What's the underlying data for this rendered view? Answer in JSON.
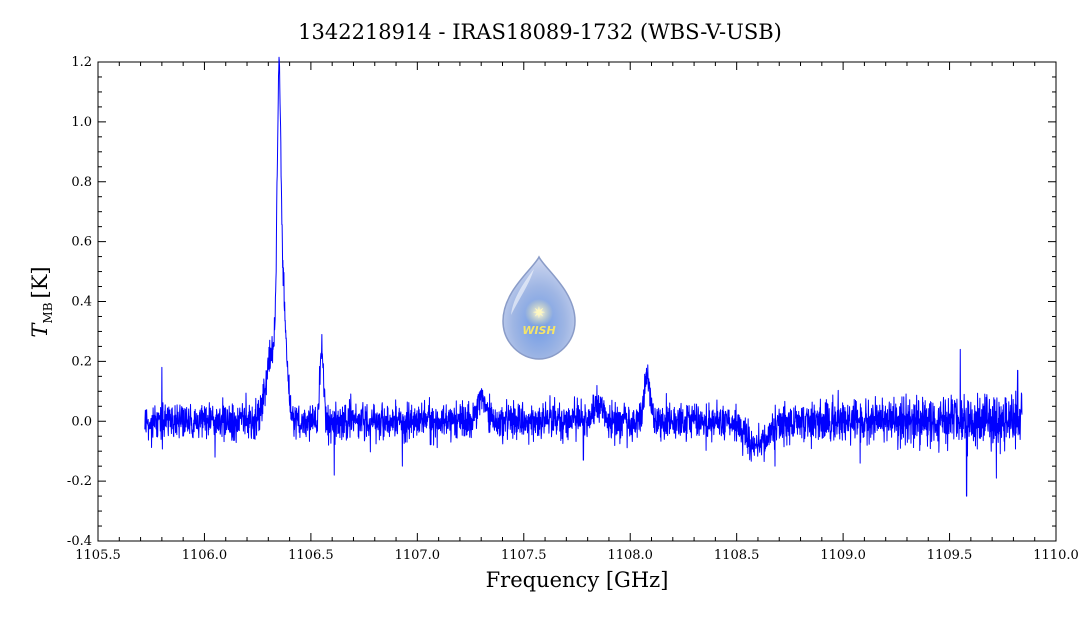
{
  "chart_data": {
    "type": "line",
    "title": "1342218914 - IRAS18089-1732 (WBS-V-USB)",
    "xlabel": "Frequency [GHz]",
    "ylabel_main": "T",
    "ylabel_sub": "MB",
    "ylabel_unit": "[K]",
    "xlim": [
      1105.5,
      1110.0
    ],
    "ylim": [
      -0.4,
      1.2
    ],
    "xticks": [
      1105.5,
      1106.0,
      1106.5,
      1107.0,
      1107.5,
      1108.0,
      1108.5,
      1109.0,
      1109.5,
      1110.0
    ],
    "xtick_labels": [
      "1105.5",
      "1106.0",
      "1106.5",
      "1107.0",
      "1107.5",
      "1108.0",
      "1108.5",
      "1109.0",
      "1109.5",
      "1110.0"
    ],
    "yticks": [
      -0.4,
      -0.2,
      0.0,
      0.2,
      0.4,
      0.6,
      0.8,
      1.0,
      1.2
    ],
    "ytick_labels": [
      "-0.4",
      "-0.2",
      "0.0",
      "0.2",
      "0.4",
      "0.6",
      "0.8",
      "1.0",
      "1.2"
    ],
    "grid": false,
    "series": [
      {
        "color": "#0000ff",
        "x_range": [
          1105.72,
          1109.84
        ],
        "noise_rms": 0.04,
        "features": [
          {
            "center": 1106.32,
            "width": 0.03,
            "amplitude": 0.22
          },
          {
            "center": 1106.35,
            "width": 0.009,
            "amplitude": 0.85
          },
          {
            "center": 1106.37,
            "width": 0.018,
            "amplitude": 0.35
          },
          {
            "center": 1106.55,
            "width": 0.008,
            "amplitude": 0.25
          },
          {
            "center": 1107.3,
            "width": 0.02,
            "amplitude": 0.08
          },
          {
            "center": 1107.85,
            "width": 0.02,
            "amplitude": 0.06
          },
          {
            "center": 1108.08,
            "width": 0.012,
            "amplitude": 0.17
          },
          {
            "center": 1108.6,
            "width": 0.05,
            "amplitude": -0.08
          }
        ],
        "spikes": [
          {
            "x": 1105.8,
            "y": 0.18
          },
          {
            "x": 1106.05,
            "y": -0.12
          },
          {
            "x": 1106.61,
            "y": -0.18
          },
          {
            "x": 1106.93,
            "y": -0.15
          },
          {
            "x": 1107.78,
            "y": -0.13
          },
          {
            "x": 1108.68,
            "y": -0.15
          },
          {
            "x": 1109.08,
            "y": -0.14
          },
          {
            "x": 1109.55,
            "y": 0.24
          },
          {
            "x": 1109.58,
            "y": -0.25
          },
          {
            "x": 1109.72,
            "y": -0.19
          },
          {
            "x": 1109.82,
            "y": 0.17
          }
        ]
      }
    ]
  },
  "logo": {
    "text": "WISH"
  }
}
